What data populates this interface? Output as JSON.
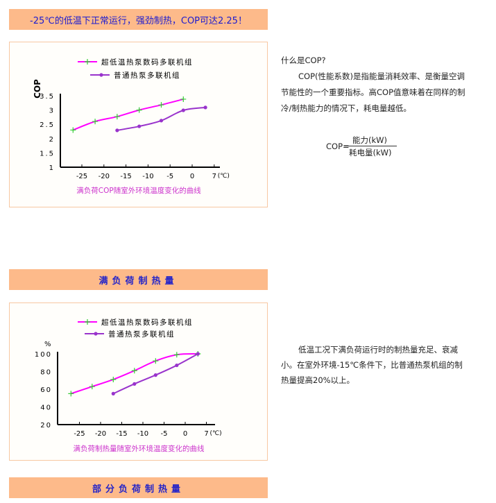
{
  "banners": {
    "top": "-25℃的低温下正常运行，强劲制热，COP可达2.25！",
    "full_load": "满负荷制热量",
    "partial_load": "部分负荷制热量"
  },
  "cop_text": {
    "question": "什么是COP?",
    "lines": [
      "COP(性能系数)是指能量消耗效率、是衡量空调",
      "节能性的一个重要指标。高COP值意味着在同样的制",
      "冷/制热能力的情况下，耗电量越低。"
    ],
    "formula_lhs": "COP=",
    "formula_num": "能力(kW)",
    "formula_den": "耗电量(kW)"
  },
  "heat_text": {
    "lines": [
      "低温工况下满负荷运行时的制热量充足、衰减",
      "小。在室外环境-15℃条件下，比普通热泵机组的制",
      "热量提高20%以上。"
    ]
  },
  "colors": {
    "series_ultra": "#ff00ff",
    "series_normal": "#9933cc",
    "marker_ultra": "#33cc33",
    "caption": "#cc33cc",
    "banner_bg": "#fdba8a",
    "banner_text": "#1b1bd0"
  },
  "chart_data": [
    {
      "type": "line",
      "title": "满负荷COP随室外环境温度变化的曲线",
      "ylabel": "COP",
      "xunit": "(℃)",
      "xticks": [
        "-25",
        "-20",
        "-15",
        "-10",
        "-5",
        "0",
        "7"
      ],
      "yticks": [
        "1",
        "1.5",
        "2",
        "2.5",
        "3",
        "3.5"
      ],
      "ylim": [
        1,
        3.5
      ],
      "legend_placement": "top",
      "series": [
        {
          "name": "超低温热泵数码多联机组",
          "marker": "plus",
          "x": [
            -27,
            -22,
            -17,
            -12,
            -7,
            -2
          ],
          "y": [
            2.3,
            2.6,
            2.77,
            3.0,
            3.18,
            3.38
          ]
        },
        {
          "name": "普通热泵多联机组",
          "marker": "dot",
          "x": [
            -17,
            -12,
            -7,
            -2,
            3
          ],
          "y": [
            2.29,
            2.43,
            2.63,
            2.99,
            3.09
          ]
        }
      ]
    },
    {
      "type": "line",
      "title": "满负荷制热量随室外环境温度变化的曲线",
      "ylabel": "%",
      "xunit": "(℃)",
      "xticks": [
        "-25",
        "-20",
        "-15",
        "-10",
        "-5",
        "0",
        "7"
      ],
      "yticks": [
        "20",
        "40",
        "60",
        "80",
        "100"
      ],
      "ylim": [
        20,
        100
      ],
      "legend_placement": "top",
      "series": [
        {
          "name": "超低温热泵数码多联机组",
          "marker": "plus",
          "x": [
            -27,
            -22,
            -17,
            -12,
            -7,
            -2,
            3
          ],
          "y": [
            55,
            63,
            71,
            81,
            92,
            99,
            100
          ]
        },
        {
          "name": "普通热泵多联机组",
          "marker": "dot",
          "x": [
            -17,
            -12,
            -7,
            -2,
            3
          ],
          "y": [
            55,
            66,
            76,
            87,
            100
          ]
        }
      ]
    }
  ]
}
